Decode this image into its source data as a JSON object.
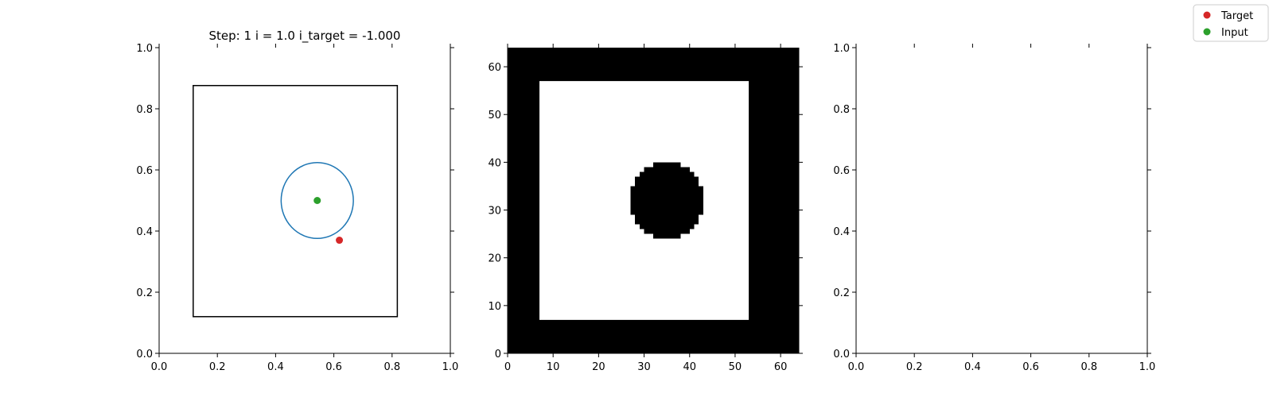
{
  "chart_data": [
    {
      "type": "scatter",
      "title": "Step: 1 i = 1.0 i_target = -1.000",
      "xlim": [
        0,
        1
      ],
      "ylim": [
        0,
        1
      ],
      "xticks": [
        "0.0",
        "0.2",
        "0.4",
        "0.6",
        "0.8",
        "1.0"
      ],
      "yticks": [
        "0.0",
        "0.2",
        "0.4",
        "0.6",
        "0.8",
        "1.0"
      ],
      "rectangle": {
        "x0": 0.117,
        "y0": 0.12,
        "x1": 0.818,
        "y1": 0.876,
        "color": "#000000"
      },
      "ellipse": {
        "cx": 0.543,
        "cy": 0.5,
        "rx": 0.124,
        "ry": 0.124,
        "color": "#1f77b4"
      },
      "points": [
        {
          "name": "Input",
          "x": 0.543,
          "y": 0.5,
          "color": "#2ca02c"
        },
        {
          "name": "Target",
          "x": 0.619,
          "y": 0.37,
          "color": "#d62728"
        }
      ]
    },
    {
      "type": "heatmap",
      "xlim": [
        0,
        64
      ],
      "ylim": [
        0,
        64
      ],
      "xticks": [
        "0",
        "10",
        "20",
        "30",
        "40",
        "50",
        "60"
      ],
      "yticks": [
        "0",
        "10",
        "20",
        "30",
        "40",
        "50",
        "60"
      ],
      "values": "binary image: black border, white square from x 7 to 53 and y 7 to 57, black disc centred at (35, 32) with radius 8",
      "inner_rect": {
        "x0": 7,
        "y0": 7,
        "x1": 53,
        "y1": 57
      },
      "disc": {
        "cx": 35,
        "cy": 32,
        "r": 8
      },
      "colors": {
        "on": "#000000",
        "off": "#ffffff"
      }
    },
    {
      "type": "scatter",
      "xlim": [
        0,
        1
      ],
      "ylim": [
        0,
        1
      ],
      "xticks": [
        "0.0",
        "0.2",
        "0.4",
        "0.6",
        "0.8",
        "1.0"
      ],
      "yticks": [
        "0.0",
        "0.2",
        "0.4",
        "0.6",
        "0.8",
        "1.0"
      ],
      "points": []
    }
  ],
  "legend": {
    "placement": "top-right",
    "entries": [
      {
        "label": "Target",
        "color": "#d62728"
      },
      {
        "label": "Input",
        "color": "#2ca02c"
      }
    ]
  }
}
